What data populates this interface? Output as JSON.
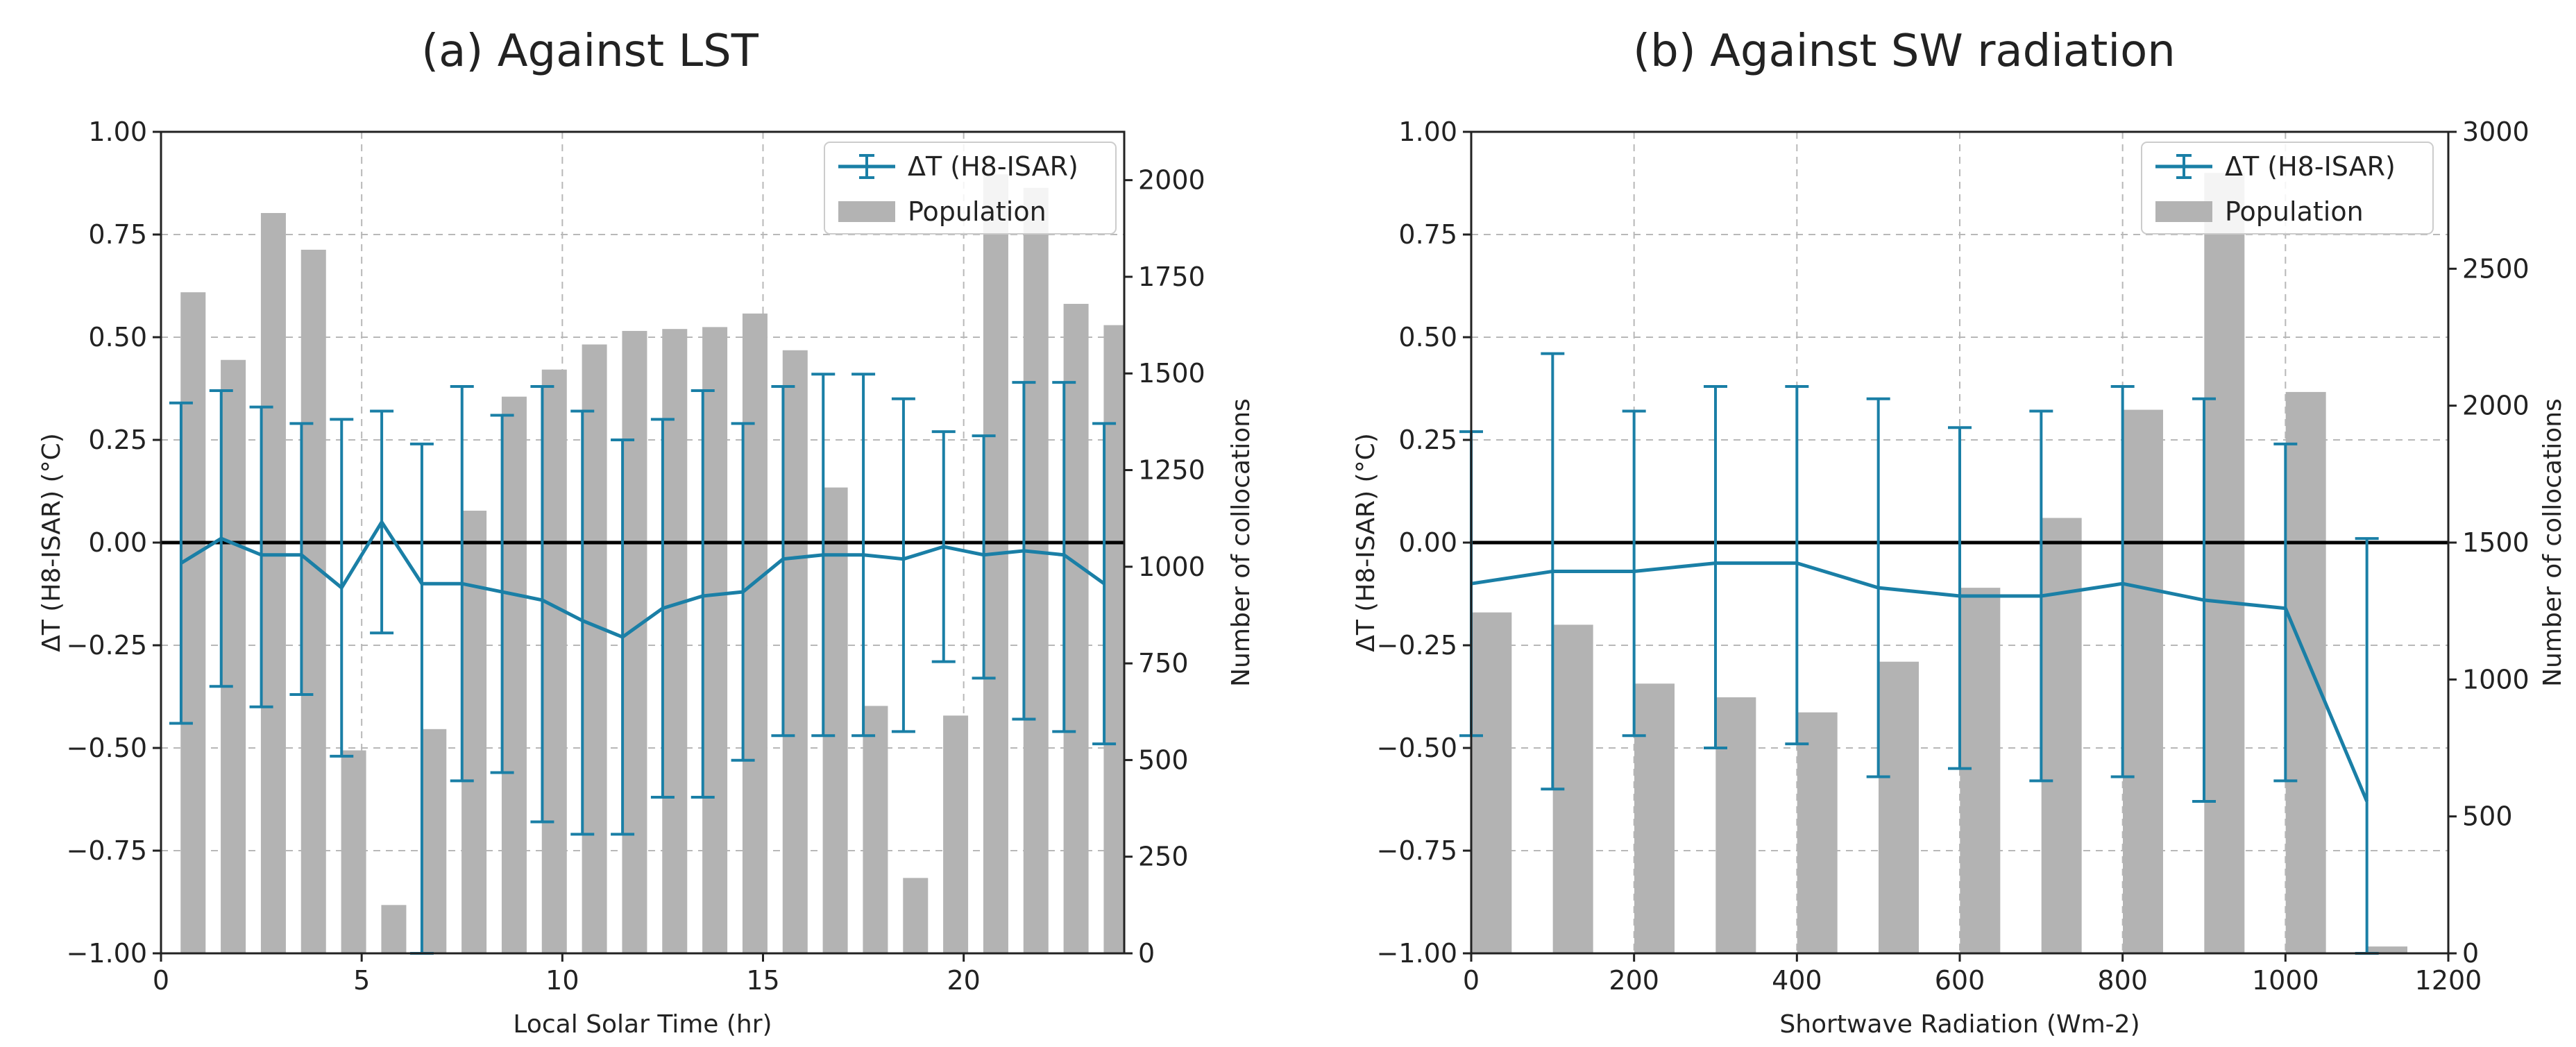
{
  "chart_data": [
    {
      "type": "bar+line",
      "title": "(a) Against LST",
      "xlabel": "Local Solar Time (hr)",
      "ylabel": "ΔT (H8-ISAR) (°C)",
      "ylabel2": "Number of collocations",
      "xlim": [
        0,
        24
      ],
      "ylim": [
        -1.0,
        1.0
      ],
      "ylim2": [
        0,
        2125
      ],
      "xticks": [
        "0",
        "5",
        "10",
        "15",
        "20"
      ],
      "xtick_values": [
        0,
        5,
        10,
        15,
        20
      ],
      "yticks": [
        "−1.00",
        "−0.75",
        "−0.50",
        "−0.25",
        "0.00",
        "0.25",
        "0.50",
        "0.75",
        "1.00"
      ],
      "ytick_values": [
        -1.0,
        -0.75,
        -0.5,
        -0.25,
        0.0,
        0.25,
        0.5,
        0.75,
        1.0
      ],
      "y2ticks": [
        "0",
        "250",
        "500",
        "750",
        "1000",
        "1250",
        "1500",
        "1750",
        "2000"
      ],
      "y2tick_values": [
        0,
        250,
        500,
        750,
        1000,
        1250,
        1500,
        1750,
        2000
      ],
      "legend": {
        "line_label": "ΔT (H8-ISAR)",
        "bar_label": "Population",
        "placement": "top-right"
      },
      "line": {
        "x": [
          0.5,
          1.5,
          2.5,
          3.5,
          4.5,
          5.5,
          6.5,
          7.5,
          8.5,
          9.5,
          10.5,
          11.5,
          12.5,
          13.5,
          14.5,
          15.5,
          16.5,
          17.5,
          18.5,
          19.5,
          20.5,
          21.5,
          22.5,
          23.5
        ],
        "y": [
          -0.05,
          0.01,
          -0.03,
          -0.03,
          -0.11,
          0.05,
          -0.1,
          -0.1,
          -0.12,
          -0.14,
          -0.19,
          -0.23,
          -0.16,
          -0.13,
          -0.12,
          -0.04,
          -0.03,
          -0.03,
          -0.04,
          -0.01,
          -0.03,
          -0.02,
          -0.03,
          -0.1
        ],
        "err_low": [
          -0.44,
          -0.35,
          -0.4,
          -0.37,
          -0.52,
          -0.22,
          -1.0,
          -0.58,
          -0.56,
          -0.68,
          -0.71,
          -0.71,
          -0.62,
          -0.62,
          -0.53,
          -0.47,
          -0.47,
          -0.47,
          -0.46,
          -0.29,
          -0.33,
          -0.43,
          -0.46,
          -0.49
        ],
        "err_high": [
          0.34,
          0.37,
          0.33,
          0.29,
          0.3,
          0.32,
          0.24,
          0.38,
          0.31,
          0.38,
          0.32,
          0.25,
          0.3,
          0.37,
          0.29,
          0.38,
          0.41,
          0.41,
          0.35,
          0.27,
          0.26,
          0.39,
          0.39,
          0.29
        ]
      },
      "bars": {
        "x": [
          0.8,
          1.8,
          2.8,
          3.8,
          4.8,
          5.8,
          6.8,
          7.8,
          8.8,
          9.8,
          10.8,
          11.8,
          12.8,
          13.8,
          14.8,
          15.8,
          16.8,
          17.8,
          18.8,
          19.8,
          20.8,
          21.8,
          22.8,
          23.8
        ],
        "values": [
          1710,
          1535,
          1915,
          1820,
          525,
          125,
          580,
          1145,
          1440,
          1510,
          1575,
          1610,
          1615,
          1620,
          1655,
          1560,
          1205,
          640,
          195,
          615,
          2015,
          1980,
          1680,
          1625
        ]
      }
    },
    {
      "type": "bar+line",
      "title": "(b) Against SW radiation",
      "xlabel": "Shortwave Radiation (Wm-2)",
      "ylabel": "ΔT (H8-ISAR) (°C)",
      "ylabel2": "Number of collocations",
      "xlim": [
        0,
        1200
      ],
      "ylim": [
        -1.0,
        1.0
      ],
      "ylim2": [
        0,
        3000
      ],
      "xticks": [
        "0",
        "200",
        "400",
        "600",
        "800",
        "1000",
        "1200"
      ],
      "xtick_values": [
        0,
        200,
        400,
        600,
        800,
        1000,
        1200
      ],
      "yticks": [
        "−1.00",
        "−0.75",
        "−0.50",
        "−0.25",
        "0.00",
        "0.25",
        "0.50",
        "0.75",
        "1.00"
      ],
      "ytick_values": [
        -1.0,
        -0.75,
        -0.5,
        -0.25,
        0.0,
        0.25,
        0.5,
        0.75,
        1.0
      ],
      "y2ticks": [
        "0",
        "500",
        "1000",
        "1500",
        "2000",
        "2500",
        "3000"
      ],
      "y2tick_values": [
        0,
        500,
        1000,
        1500,
        2000,
        2500,
        3000
      ],
      "legend": {
        "line_label": "ΔT (H8-ISAR)",
        "bar_label": "Population",
        "placement": "top-right"
      },
      "line": {
        "x": [
          0,
          100,
          200,
          300,
          400,
          500,
          600,
          700,
          800,
          900,
          1000,
          1100
        ],
        "y": [
          -0.1,
          -0.07,
          -0.07,
          -0.05,
          -0.05,
          -0.11,
          -0.13,
          -0.13,
          -0.1,
          -0.14,
          -0.16,
          -0.63
        ],
        "err_low": [
          -0.47,
          -0.6,
          -0.47,
          -0.5,
          -0.49,
          -0.57,
          -0.55,
          -0.58,
          -0.57,
          -0.63,
          -0.58,
          -1.0
        ],
        "err_high": [
          0.27,
          0.46,
          0.32,
          0.38,
          0.38,
          0.35,
          0.28,
          0.32,
          0.38,
          0.35,
          0.24,
          0.01
        ]
      },
      "bars": {
        "x": [
          25,
          125,
          225,
          325,
          425,
          525,
          625,
          725,
          825,
          925,
          1025,
          1125
        ],
        "values": [
          1245,
          1200,
          985,
          935,
          880,
          1065,
          1335,
          1590,
          1985,
          2850,
          2050,
          25
        ]
      }
    }
  ]
}
